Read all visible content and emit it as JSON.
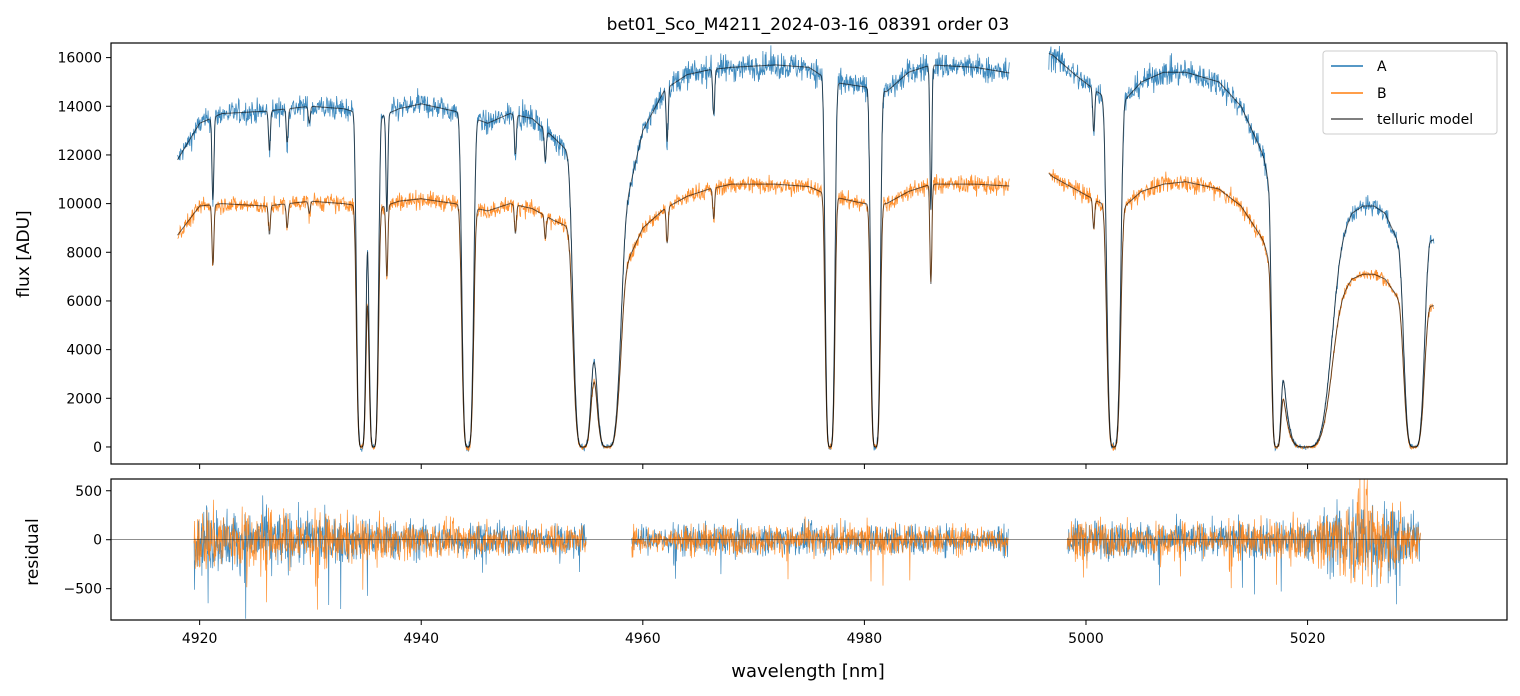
{
  "title": "bet01_Sco_M4211_2024-03-16_08391  order 03",
  "colors": {
    "A": "#1f77b4",
    "B": "#ff7f0e",
    "model": "#000000",
    "zero_line": "#000000"
  },
  "legend": {
    "placement": "top-right",
    "entries": [
      "A",
      "B",
      "telluric model"
    ]
  },
  "chart_data": [
    {
      "name": "spectrum",
      "type": "line",
      "ylabel": "flux [ADU]",
      "xlim": [
        4912,
        5038
      ],
      "ylim": [
        -700,
        16600
      ],
      "yticks": [
        0,
        2000,
        4000,
        6000,
        8000,
        10000,
        12000,
        14000,
        16000
      ],
      "ytick_labels": [
        "0",
        "2000",
        "4000",
        "6000",
        "8000",
        "10000",
        "12000",
        "14000",
        "16000"
      ],
      "continuum_A": [
        [
          4918,
          11800
        ],
        [
          4920,
          13300
        ],
        [
          4922,
          13700
        ],
        [
          4926,
          13800
        ],
        [
          4930,
          14000
        ],
        [
          4933,
          13900
        ],
        [
          4936,
          13500
        ],
        [
          4938,
          13900
        ],
        [
          4940,
          14100
        ],
        [
          4943,
          13800
        ],
        [
          4946,
          13300
        ],
        [
          4948,
          13700
        ],
        [
          4950,
          13500
        ],
        [
          4952,
          12700
        ],
        [
          4954,
          11800
        ],
        [
          4958,
          9000
        ],
        [
          4960,
          13000
        ],
        [
          4962,
          14700
        ],
        [
          4964,
          15300
        ],
        [
          4966,
          15500
        ],
        [
          4968,
          15600
        ],
        [
          4972,
          15700
        ],
        [
          4975,
          15600
        ],
        [
          4977,
          15000
        ],
        [
          4980,
          14800
        ],
        [
          4982,
          14600
        ],
        [
          4984,
          15400
        ],
        [
          4986,
          15700
        ],
        [
          4990,
          15600
        ],
        [
          4994,
          15300
        ],
        [
          4996,
          16300
        ],
        [
          4997,
          16100
        ],
        [
          4999,
          15300
        ],
        [
          5001,
          14600
        ],
        [
          5003,
          14000
        ],
        [
          5005,
          15000
        ],
        [
          5007,
          15400
        ],
        [
          5009,
          15400
        ],
        [
          5012,
          15000
        ],
        [
          5014,
          14000
        ],
        [
          5016,
          12000
        ],
        [
          5020,
          6000
        ],
        [
          5022,
          7500
        ],
        [
          5024,
          9600
        ],
        [
          5025,
          9900
        ],
        [
          5026,
          9900
        ],
        [
          5027,
          9600
        ],
        [
          5029,
          7600
        ],
        [
          5030,
          6200
        ],
        [
          5031,
          8500
        ]
      ],
      "continuum_B": [
        [
          4918,
          8700
        ],
        [
          4920,
          9900
        ],
        [
          4922,
          10000
        ],
        [
          4926,
          9900
        ],
        [
          4930,
          10100
        ],
        [
          4933,
          10000
        ],
        [
          4936,
          9800
        ],
        [
          4938,
          10100
        ],
        [
          4940,
          10200
        ],
        [
          4943,
          10000
        ],
        [
          4946,
          9700
        ],
        [
          4948,
          10000
        ],
        [
          4950,
          9800
        ],
        [
          4952,
          9300
        ],
        [
          4954,
          8900
        ],
        [
          4958,
          7000
        ],
        [
          4960,
          9000
        ],
        [
          4962,
          9800
        ],
        [
          4964,
          10300
        ],
        [
          4966,
          10600
        ],
        [
          4968,
          10800
        ],
        [
          4972,
          10800
        ],
        [
          4975,
          10700
        ],
        [
          4977,
          10300
        ],
        [
          4980,
          10000
        ],
        [
          4982,
          10000
        ],
        [
          4984,
          10500
        ],
        [
          4986,
          10800
        ],
        [
          4990,
          10800
        ],
        [
          4994,
          10700
        ],
        [
          4996,
          11500
        ],
        [
          4997,
          11100
        ],
        [
          4999,
          10600
        ],
        [
          5001,
          10100
        ],
        [
          5003,
          9700
        ],
        [
          5005,
          10500
        ],
        [
          5007,
          10800
        ],
        [
          5009,
          10900
        ],
        [
          5012,
          10600
        ],
        [
          5014,
          9900
        ],
        [
          5016,
          8500
        ],
        [
          5020,
          4400
        ],
        [
          5022,
          5500
        ],
        [
          5024,
          6900
        ],
        [
          5025,
          7100
        ],
        [
          5026,
          7100
        ],
        [
          5027,
          6900
        ],
        [
          5029,
          5600
        ],
        [
          5030,
          4800
        ],
        [
          5031,
          5800
        ]
      ],
      "deep_bands": [
        {
          "center": 4934.6,
          "width": 0.5
        },
        {
          "center": 4935.7,
          "width": 0.5
        },
        {
          "center": 4944.2,
          "width": 0.6
        },
        {
          "center": 4954.6,
          "width": 1.0
        },
        {
          "center": 4956.8,
          "width": 1.3
        },
        {
          "center": 4976.9,
          "width": 0.5
        },
        {
          "center": 4981.0,
          "width": 0.5
        },
        {
          "center": 5002.5,
          "width": 0.7
        },
        {
          "center": 5017.2,
          "width": 0.5
        },
        {
          "center": 5019.8,
          "width": 2.5
        },
        {
          "center": 5029.6,
          "width": 1.0
        }
      ],
      "narrow_lines": [
        {
          "x": 4921.2,
          "depth": 0.25
        },
        {
          "x": 4926.3,
          "depth": 0.12
        },
        {
          "x": 4927.9,
          "depth": 0.1
        },
        {
          "x": 4929.9,
          "depth": 0.05
        },
        {
          "x": 4936.9,
          "depth": 0.3
        },
        {
          "x": 4948.5,
          "depth": 0.12
        },
        {
          "x": 4951.2,
          "depth": 0.1
        },
        {
          "x": 4962.2,
          "depth": 0.15
        },
        {
          "x": 4966.4,
          "depth": 0.12
        },
        {
          "x": 4986.0,
          "depth": 0.38
        },
        {
          "x": 4996.3,
          "depth": 0.1
        },
        {
          "x": 5000.7,
          "depth": 0.12
        }
      ],
      "instrument_gap": [
        4993.1,
        4996.6
      ]
    },
    {
      "name": "residual",
      "type": "line",
      "xlabel": "wavelength [nm]",
      "ylabel": "residual",
      "xlim": [
        4912,
        5038
      ],
      "ylim": [
        -820,
        620
      ],
      "xticks": [
        4920,
        4940,
        4960,
        4980,
        5000,
        5020
      ],
      "xtick_labels": [
        "4920",
        "4940",
        "4960",
        "4980",
        "5000",
        "5020"
      ],
      "yticks": [
        -500,
        0,
        500
      ],
      "ytick_labels": [
        "−500",
        "0",
        "500"
      ],
      "segments": [
        [
          4919.5,
          4954.9
        ],
        [
          4959.0,
          4993.0
        ],
        [
          4998.3,
          5030.2
        ]
      ],
      "noise_amplitude": [
        [
          4920,
          380
        ],
        [
          4930,
          300
        ],
        [
          4935,
          240
        ],
        [
          4942,
          200
        ],
        [
          4950,
          180
        ],
        [
          4960,
          160
        ],
        [
          4980,
          180
        ],
        [
          4992,
          160
        ],
        [
          5000,
          220
        ],
        [
          5010,
          190
        ],
        [
          5020,
          230
        ],
        [
          5025,
          560
        ],
        [
          5030,
          250
        ]
      ]
    }
  ]
}
